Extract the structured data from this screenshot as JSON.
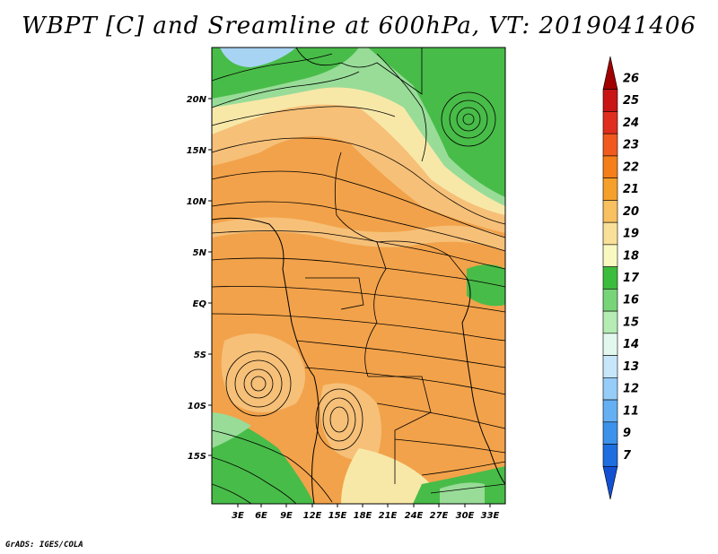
{
  "title": "WBPT [C] and Sreamline at 600hPa, VT: 2019041406",
  "footer": "GrADS: IGES/COLA",
  "map": {
    "lat_ticks": [
      "20N",
      "15N",
      "10N",
      "5N",
      "EQ",
      "5S",
      "10S",
      "15S"
    ],
    "lon_ticks": [
      "3E",
      "6E",
      "9E",
      "12E",
      "15E",
      "18E",
      "21E",
      "24E",
      "27E",
      "30E",
      "33E"
    ]
  },
  "colorbar": {
    "labels": [
      "26",
      "25",
      "24",
      "23",
      "22",
      "21",
      "20",
      "19",
      "18",
      "17",
      "16",
      "15",
      "14",
      "13",
      "12",
      "11",
      "9",
      "7"
    ],
    "colors": [
      "#a00000",
      "#c81414",
      "#e02e1e",
      "#f05a1e",
      "#f47e1a",
      "#f4a02a",
      "#f8c060",
      "#f8e098",
      "#f8f8c0",
      "#3cbc3c",
      "#78d478",
      "#b4ecb4",
      "#e2f8ee",
      "#c8e6fa",
      "#96cdf8",
      "#64b0f2",
      "#3c92ea",
      "#1e6ee0",
      "#1450d2"
    ]
  },
  "colors": {
    "orange": "#f2a24a",
    "light_orange": "#f6c078",
    "pale_yellow": "#f8e8a8",
    "green": "#48bc48",
    "light_green": "#98dc98",
    "sky_blue": "#a8d4f4"
  }
}
